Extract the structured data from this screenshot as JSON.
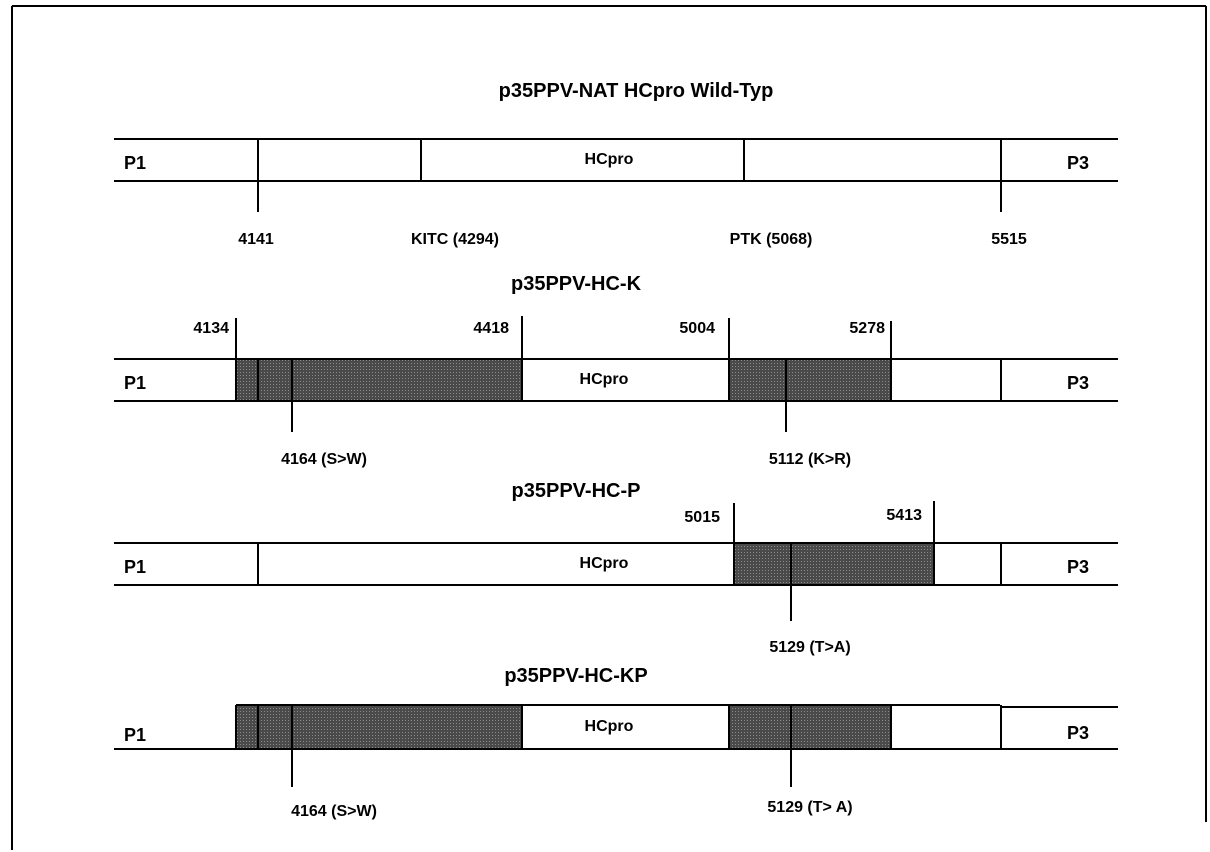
{
  "constructs": [
    {
      "title": "p35PPV-NAT HCpro Wild-Typ",
      "left_label": "P1",
      "center_label": "HCpro",
      "right_label": "P3",
      "markers": [
        {
          "label": "4141"
        },
        {
          "label": "KITC (4294)"
        },
        {
          "label": "PTK (5068)"
        },
        {
          "label": "5515"
        }
      ]
    },
    {
      "title": "p35PPV-HC-K",
      "left_label": "P1",
      "center_label": "HCpro",
      "right_label": "P3",
      "boundaries": [
        {
          "label": "4134"
        },
        {
          "label": "4418"
        },
        {
          "label": "5004"
        },
        {
          "label": "5278"
        }
      ],
      "mutations": [
        {
          "label": "4164 (S>W)"
        },
        {
          "label": "5112 (K>R)"
        }
      ]
    },
    {
      "title": "p35PPV-HC-P",
      "left_label": "P1",
      "center_label": "HCpro",
      "right_label": "P3",
      "boundaries": [
        {
          "label": "5015"
        },
        {
          "label": "5413"
        }
      ],
      "mutations": [
        {
          "label": "5129 (T>A)"
        }
      ]
    },
    {
      "title": "p35PPV-HC-KP",
      "left_label": "P1",
      "center_label": "HCpro",
      "right_label": "P3",
      "mutations": [
        {
          "label": "4164 (S>W)"
        },
        {
          "label": "5129 (T> A)"
        }
      ]
    }
  ]
}
